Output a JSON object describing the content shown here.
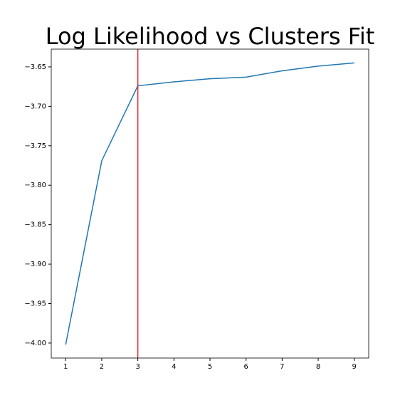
{
  "chart_data": {
    "type": "line",
    "title": "Log Likelihood vs Clusters Fit",
    "x": [
      1,
      2,
      3,
      4,
      5,
      6,
      7,
      8,
      9
    ],
    "series": [
      {
        "color": "#1f77b4",
        "values": [
          -4.002,
          -3.769,
          -3.674,
          -3.669,
          -3.665,
          -3.663,
          -3.655,
          -3.649,
          -3.645
        ]
      }
    ],
    "vline": {
      "x": 3,
      "color": "#e8262a"
    },
    "xlim": [
      0.6,
      9.4
    ],
    "xticks": [
      1,
      2,
      3,
      4,
      5,
      6,
      7,
      8,
      9
    ],
    "ylim": [
      -4.019,
      -3.6275
    ],
    "yticks": [
      {
        "value": -4.0,
        "label": "−4.00"
      },
      {
        "value": -3.95,
        "label": "−3.95"
      },
      {
        "value": -3.9,
        "label": "−3.90"
      },
      {
        "value": -3.85,
        "label": "−3.85"
      },
      {
        "value": -3.8,
        "label": "−3.80"
      },
      {
        "value": -3.75,
        "label": "−3.75"
      },
      {
        "value": -3.7,
        "label": "−3.70"
      },
      {
        "value": -3.65,
        "label": "−3.65"
      }
    ]
  }
}
